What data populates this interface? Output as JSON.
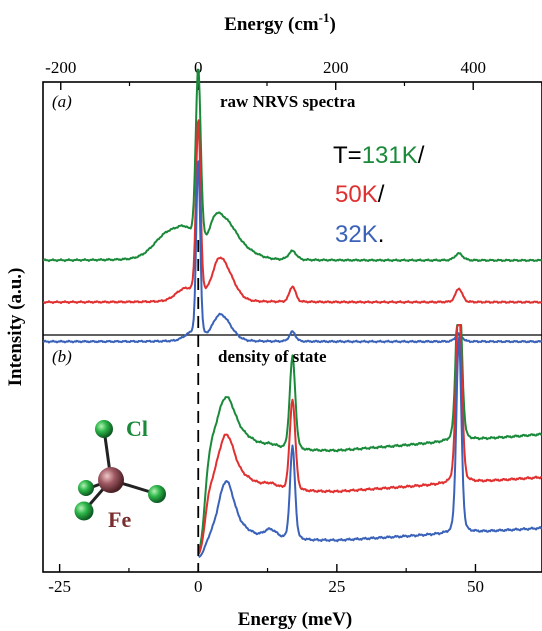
{
  "chart_data": {
    "type": "line",
    "top_axis": {
      "title_main": "Energy (cm",
      "title_sup": "-1",
      "title_end": ")",
      "ticks": [
        -200,
        0,
        200,
        400
      ],
      "tick_labels": [
        "-200",
        "0",
        "200",
        "400"
      ]
    },
    "bottom_axis": {
      "title": "Energy (meV)",
      "ticks": [
        -25,
        0,
        25,
        50
      ],
      "tick_labels": [
        "-25",
        "0",
        "25",
        "50"
      ],
      "xlim": [
        -28,
        62
      ]
    },
    "ylabel": "Intensity (a.u.)",
    "panels": [
      {
        "label": "(a)",
        "title": "raw NRVS spectra",
        "temperature_legend": {
          "prefix": "T=",
          "entries": [
            {
              "text": "131K",
              "suffix": "/",
              "color": "#1a8a3a"
            },
            {
              "text": "50K",
              "suffix": "/",
              "color": "#e03030"
            },
            {
              "text": "32K",
              "suffix": ".",
              "color": "#3a62b8"
            }
          ]
        },
        "series": [
          {
            "color": "#1a8a3a",
            "baseline": 0.3,
            "peaks": [
              [
                -5.5,
                0.13,
                2.5
              ],
              [
                -2.2,
                0.1,
                1.6
              ],
              [
                0,
                0.92,
                0.45
              ],
              [
                3.0,
                0.14,
                1.2
              ],
              [
                5.2,
                0.16,
                1.8
              ],
              [
                8.5,
                0.04,
                2.2
              ],
              [
                17,
                0.045,
                0.7
              ],
              [
                47,
                0.035,
                0.7
              ]
            ]
          },
          {
            "color": "#e03030",
            "baseline": 0.12,
            "peaks": [
              [
                -2.5,
                0.06,
                1.6
              ],
              [
                0,
                0.92,
                0.4
              ],
              [
                3.5,
                0.14,
                1.2
              ],
              [
                5.2,
                0.13,
                1.6
              ],
              [
                17,
                0.08,
                0.55
              ],
              [
                47,
                0.07,
                0.6
              ]
            ]
          },
          {
            "color": "#3a62b8",
            "baseline": -0.05,
            "peaks": [
              [
                -1.5,
                0.03,
                1.2
              ],
              [
                0,
                0.93,
                0.35
              ],
              [
                3.5,
                0.08,
                1.2
              ],
              [
                5.0,
                0.08,
                1.5
              ],
              [
                17,
                0.05,
                0.55
              ],
              [
                47,
                0.04,
                0.6
              ]
            ]
          }
        ]
      },
      {
        "label": "(b)",
        "title": "density of state",
        "molecule": {
          "cl_label": "Cl",
          "fe_label": "Fe",
          "cl_color": "#1a8a3a",
          "fe_color": "#7a2e2e"
        },
        "series": [
          {
            "color": "#1a8a3a",
            "baseline": 0.56,
            "tail": 0.08,
            "peaks": [
              [
                5,
                0.31,
                1.6
              ],
              [
                8.5,
                0.07,
                2.0
              ],
              [
                13,
                0.03,
                1.5
              ],
              [
                17,
                0.57,
                0.5
              ],
              [
                47,
                1.05,
                0.5
              ]
            ]
          },
          {
            "color": "#e03030",
            "baseline": 0.35,
            "tail": 0.07,
            "peaks": [
              [
                5,
                0.33,
                1.5
              ],
              [
                8.5,
                0.07,
                2.0
              ],
              [
                13,
                0.04,
                1.5
              ],
              [
                17,
                0.56,
                0.5
              ],
              [
                47,
                1.15,
                0.5
              ]
            ]
          },
          {
            "color": "#3a62b8",
            "baseline": 0.1,
            "tail": 0.06,
            "peaks": [
              [
                5,
                0.34,
                1.4
              ],
              [
                8,
                0.06,
                2.0
              ],
              [
                13,
                0.06,
                1.2
              ],
              [
                17,
                0.57,
                0.45
              ],
              [
                47,
                1.2,
                0.45
              ]
            ]
          }
        ]
      }
    ],
    "dashed_line_x": 0,
    "grid": false
  }
}
